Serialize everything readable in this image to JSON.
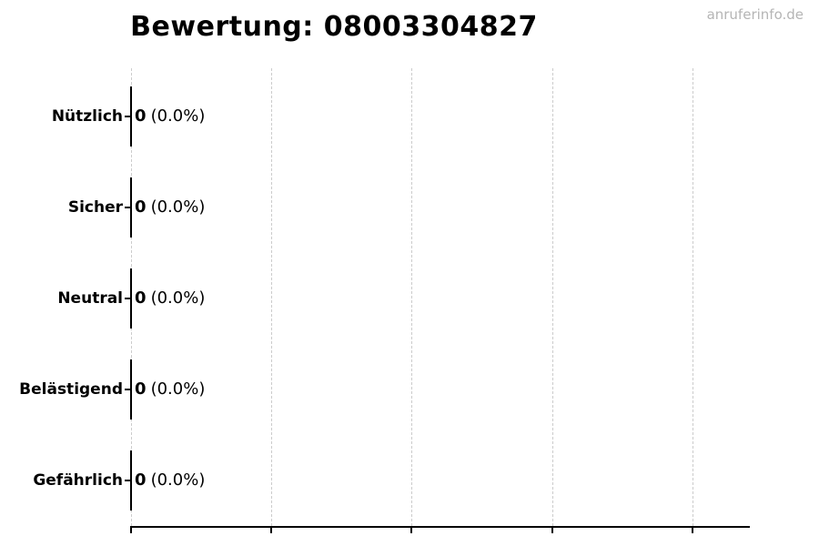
{
  "title": "Bewertung: 08003304827",
  "watermark": "anruferinfo.de",
  "colors": {
    "background": "#ffffff",
    "text": "#000000",
    "axis": "#000000",
    "gridline": "#cccccc",
    "watermark": "#b5b5b5",
    "bar_edge": "#000000"
  },
  "rows": [
    {
      "label": "Nützlich",
      "count": "0",
      "percent": "(0.0%)"
    },
    {
      "label": "Sicher",
      "count": "0",
      "percent": "(0.0%)"
    },
    {
      "label": "Neutral",
      "count": "0",
      "percent": "(0.0%)"
    },
    {
      "label": "Belästigend",
      "count": "0",
      "percent": "(0.0%)"
    },
    {
      "label": "Gefährlich",
      "count": "0",
      "percent": "(0.0%)"
    }
  ],
  "chart_data": {
    "type": "bar",
    "orientation": "horizontal",
    "title": "Bewertung: 08003304827",
    "categories": [
      "Nützlich",
      "Sicher",
      "Neutral",
      "Belästigend",
      "Gefährlich"
    ],
    "values": [
      0,
      0,
      0,
      0,
      0
    ],
    "bar_labels": [
      "0 (0.0%)",
      "0 (0.0%)",
      "0 (0.0%)",
      "0 (0.0%)",
      "0 (0.0%)"
    ],
    "xlabel": "",
    "ylabel": "",
    "xlim": [
      0,
      1
    ],
    "x_tick_count": 5,
    "x_tick_labels_visible": false,
    "grid": true,
    "grid_style": "dashed-vertical",
    "legend": false
  }
}
